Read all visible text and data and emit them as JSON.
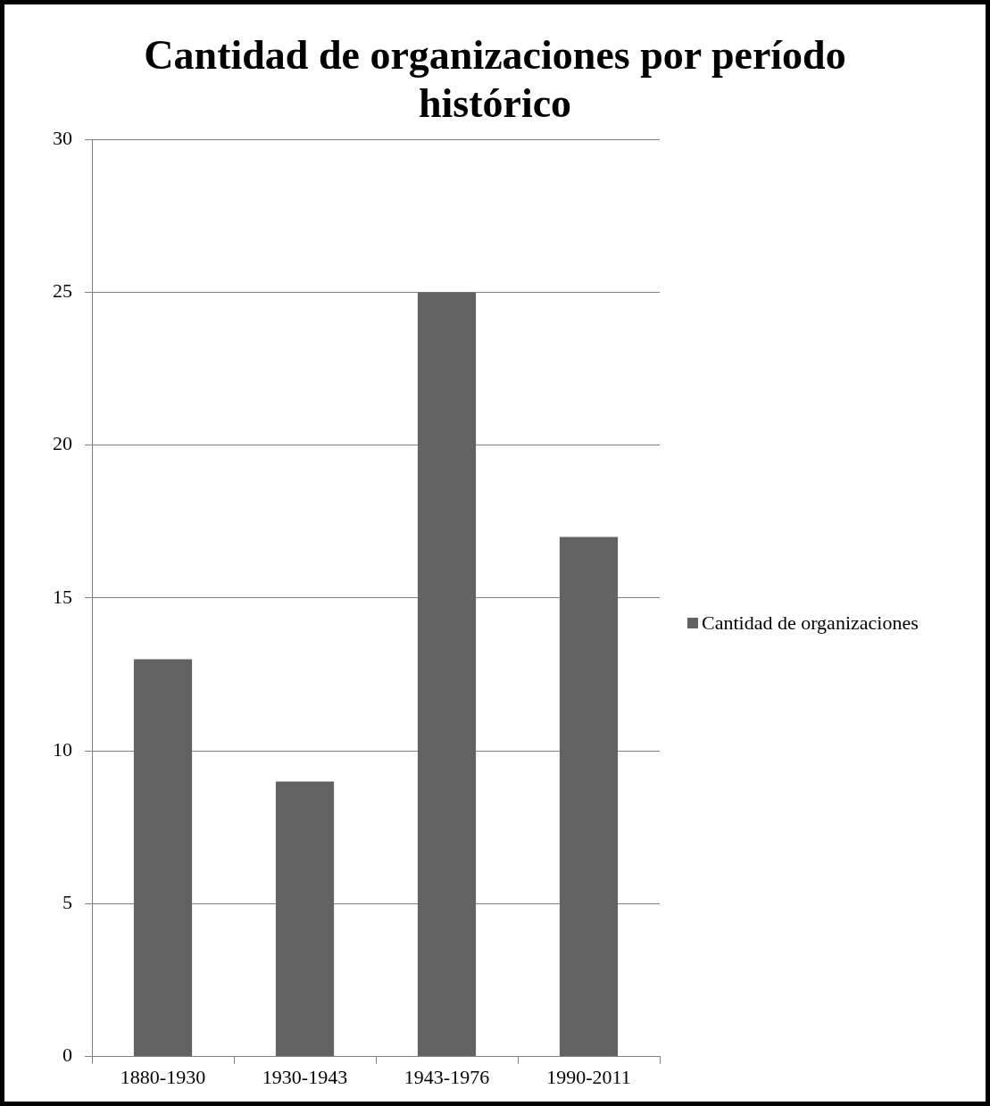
{
  "chart_data": {
    "type": "bar",
    "title": "Cantidad de organizaciones por período histórico",
    "categories": [
      "1880-1930",
      "1930-1943",
      "1943-1976",
      "1990-2011"
    ],
    "series": [
      {
        "name": "Cantidad de organizaciones",
        "color": "#626262",
        "values": [
          13,
          9,
          25,
          17
        ]
      }
    ],
    "ylim": [
      0,
      30
    ],
    "yticks": [
      0,
      5,
      10,
      15,
      20,
      25,
      30
    ],
    "grid": "y",
    "legend": "right"
  }
}
